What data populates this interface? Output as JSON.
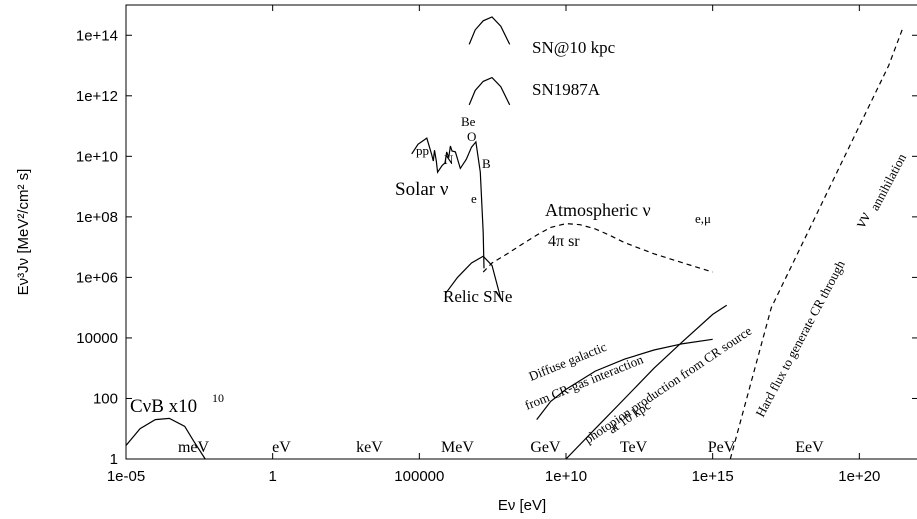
{
  "chart_data": {
    "type": "line",
    "title": "",
    "xlabel": "Eν [eV]",
    "ylabel": "Eν³Jν [MeV²/cm² s]",
    "xscale": "log",
    "yscale": "log",
    "xlim": [
      1e-05,
      1e+22
    ],
    "ylim": [
      1,
      1000000000000000.0
    ],
    "x_ticks": [
      {
        "value": 1e-05,
        "label": "1e-05"
      },
      {
        "value": 1,
        "label": "1"
      },
      {
        "value": 100000,
        "label": "100000"
      },
      {
        "value": 10000000000.0,
        "label": "1e+10"
      },
      {
        "value": 1000000000000000.0,
        "label": "1e+15"
      },
      {
        "value": 1e+20,
        "label": "1e+20"
      }
    ],
    "y_ticks": [
      {
        "value": 1,
        "label": "1"
      },
      {
        "value": 100,
        "label": "100"
      },
      {
        "value": 10000,
        "label": "10000"
      },
      {
        "value": 1000000,
        "label": "1e+06"
      },
      {
        "value": 100000000,
        "label": "1e+08"
      },
      {
        "value": 10000000000,
        "label": "1e+10"
      },
      {
        "value": 1000000000000,
        "label": "1e+12"
      },
      {
        "value": 100000000000000,
        "label": "1e+14"
      }
    ],
    "energy_labels": [
      {
        "text": "meV",
        "x": 0.002
      },
      {
        "text": "eV",
        "x": 2
      },
      {
        "text": "keV",
        "x": 2000
      },
      {
        "text": "MeV",
        "x": 2000000
      },
      {
        "text": "GeV",
        "x": 2000000000
      },
      {
        "text": "TeV",
        "x": 2000000000000
      },
      {
        "text": "PeV",
        "x": 2000000000000000
      },
      {
        "text": "EeV",
        "x": 2000000000000000000
      }
    ],
    "series": [
      {
        "name": "CνB x10¹⁰",
        "style": "solid",
        "x": [
          1e-05,
          3e-05,
          0.0001,
          0.0003,
          0.001,
          0.002,
          0.005
        ],
        "y": [
          2.8,
          10,
          20,
          22,
          12,
          4,
          1
        ]
      },
      {
        "name": "SN@10 kpc",
        "style": "solid",
        "x": [
          5000000,
          8000000,
          15000000,
          30000000,
          60000000,
          120000000
        ],
        "y": [
          50000000000000,
          150000000000000,
          300000000000000,
          400000000000000,
          200000000000000,
          50000000000000
        ]
      },
      {
        "name": "SN1987A",
        "style": "solid",
        "x": [
          5000000,
          8000000,
          15000000,
          30000000,
          60000000,
          120000000
        ],
        "y": [
          500000000000,
          1500000000000,
          3000000000000,
          4000000000000,
          2000000000000,
          500000000000
        ]
      },
      {
        "name": "Solar νe",
        "style": "solid",
        "x": [
          55000,
          90000,
          180000,
          260000,
          300000,
          330000,
          380000,
          420000,
          600000,
          750000,
          860000,
          1000000,
          1150000,
          1300000,
          1700000,
          2500000,
          4000000,
          6000000,
          8500000,
          12000000,
          15000000,
          16000000
        ],
        "y": [
          12000000000,
          25000000000,
          40000000000,
          12000000000,
          7000000000,
          16000000000,
          7000000000,
          3000000000,
          5000000000,
          6000000000,
          14000000000,
          9000000000,
          22000000000,
          15000000000,
          14000000000,
          4000000000,
          8000000000,
          20000000000,
          30000000000,
          3000000000,
          30000000,
          2000000
        ]
      },
      {
        "name": "Atmospheric ν e,μ",
        "style": "dashed",
        "x": [
          15000000,
          30000000,
          100000000,
          300000000,
          1000000000,
          3000000000,
          10000000000,
          30000000000,
          100000000000,
          300000000000,
          1000000000000,
          10000000000000,
          100000000000000,
          1000000000000000
        ],
        "y": [
          1500000,
          3000000,
          6000000,
          12000000,
          25000000,
          45000000,
          60000000,
          55000000,
          40000000,
          25000000,
          14000000,
          6000000,
          3000000,
          1500000
        ]
      },
      {
        "name": "Relic SNe",
        "style": "solid",
        "x": [
          800000,
          2000000,
          6000000,
          15000000,
          30000000,
          60000000
        ],
        "y": [
          300000,
          1000000,
          3000000,
          5000000,
          2500000,
          200000
        ]
      },
      {
        "name": "Diffuse galactic from CR-gas interaction",
        "style": "solid",
        "x": [
          1000000000,
          3000000000,
          10000000000,
          100000000000,
          1000000000000,
          10000000000000,
          100000000000000,
          1000000000000000
        ],
        "y": [
          20,
          80,
          200,
          800,
          2000,
          4000,
          6500,
          9000
        ]
      },
      {
        "name": "photopion production from CR source at 10 kpc",
        "style": "solid",
        "x": [
          10000000000,
          100000000000,
          1000000000000,
          10000000000000,
          100000000000000,
          1000000000000000,
          3000000000000000
        ],
        "y": [
          1,
          10,
          100,
          1000,
          8000,
          60000,
          120000
        ]
      },
      {
        "name": "Hard flux to generate CR through νν annihilation",
        "style": "dashed",
        "x": [
          4000000000000000,
          100000000000000000,
          1e+19,
          1e+20,
          1e+21,
          3.2e+21
        ],
        "y": [
          1,
          100000,
          1000000000,
          100000000000,
          10000000000000,
          200000000000000
        ]
      }
    ],
    "annotations": {
      "cnub_base": "CνB x10",
      "cnub_exp": "10",
      "sn10": "SN@10 kpc",
      "sn1987": "SN1987A",
      "solar_label": "Solar ν",
      "solar_sub": "e",
      "pp": "pp",
      "n": "N",
      "be": "Be",
      "o": "O",
      "b": "B",
      "atm_label": "Atmospheric ν",
      "atm_sub": "e,μ",
      "four_pi": "4π sr",
      "relic": "Relic SNe",
      "diffuse1": "Diffuse galactic",
      "diffuse2": "from CR-gas interaction",
      "photo1": "photopion production from CR source",
      "photo2": "at 10 kpc",
      "hard": "Hard flux to generate CR through",
      "hard_nu": "νν",
      "hard_tail": "annihilation"
    },
    "grid": false,
    "legend": "none"
  }
}
